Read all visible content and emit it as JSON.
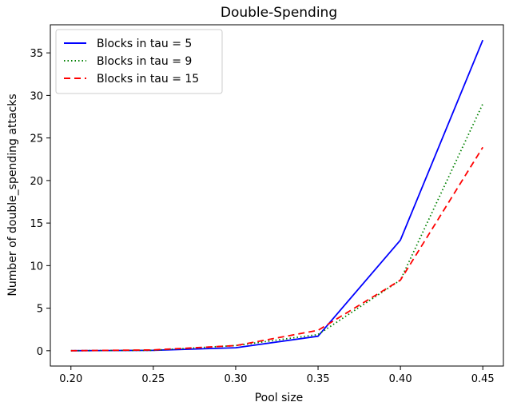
{
  "chart_data": {
    "type": "line",
    "title": "Double-Spending",
    "xlabel": "Pool size",
    "ylabel": "Number of double_spending attacks",
    "x": [
      0.2,
      0.25,
      0.3,
      0.35,
      0.4,
      0.45
    ],
    "xticks": [
      "0.20",
      "0.25",
      "0.30",
      "0.35",
      "0.40",
      "0.45"
    ],
    "yticks": [
      "0",
      "5",
      "10",
      "15",
      "20",
      "25",
      "30",
      "35"
    ],
    "yticks_values": [
      0,
      5,
      10,
      15,
      20,
      25,
      30,
      35
    ],
    "xlim": [
      0.1875,
      0.4625
    ],
    "ylim": [
      -1.8,
      38.3
    ],
    "grid": false,
    "legend_position": "top-left",
    "series": [
      {
        "name": "Blocks in tau = 5",
        "color": "#0000ff",
        "linestyle": "solid",
        "values": [
          0.0,
          0.05,
          0.35,
          1.7,
          13.0,
          36.5
        ]
      },
      {
        "name": "Blocks in tau = 9",
        "color": "#008000",
        "linestyle": "dotted",
        "values": [
          0.0,
          0.05,
          0.6,
          1.9,
          8.3,
          29.0
        ]
      },
      {
        "name": "Blocks in tau = 15",
        "color": "#ff0000",
        "linestyle": "dashed",
        "values": [
          0.0,
          0.1,
          0.6,
          2.4,
          8.3,
          23.9
        ]
      }
    ]
  }
}
